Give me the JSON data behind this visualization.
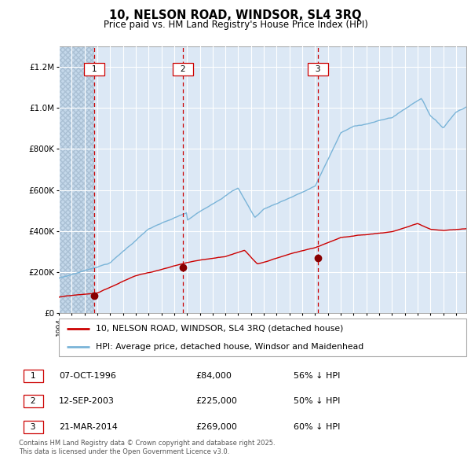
{
  "title": "10, NELSON ROAD, WINDSOR, SL4 3RQ",
  "subtitle": "Price paid vs. HM Land Registry's House Price Index (HPI)",
  "hpi_label": "HPI: Average price, detached house, Windsor and Maidenhead",
  "price_label": "10, NELSON ROAD, WINDSOR, SL4 3RQ (detached house)",
  "footer": "Contains HM Land Registry data © Crown copyright and database right 2025.\nThis data is licensed under the Open Government Licence v3.0.",
  "sale_dates": [
    "07-OCT-1996",
    "12-SEP-2003",
    "21-MAR-2014"
  ],
  "sale_prices": [
    84000,
    225000,
    269000
  ],
  "sale_hpi_pct": [
    "56% ↓ HPI",
    "50% ↓ HPI",
    "60% ↓ HPI"
  ],
  "sale_years": [
    1996.77,
    2003.7,
    2014.22
  ],
  "hpi_color": "#7ab4d8",
  "price_color": "#cc0000",
  "vline_color": "#cc0000",
  "dot_color": "#880000",
  "bg_color": "#dce8f5",
  "grid_color": "#ffffff",
  "ylim": [
    0,
    1300000
  ],
  "xlim_start": 1994.0,
  "xlim_end": 2025.8
}
